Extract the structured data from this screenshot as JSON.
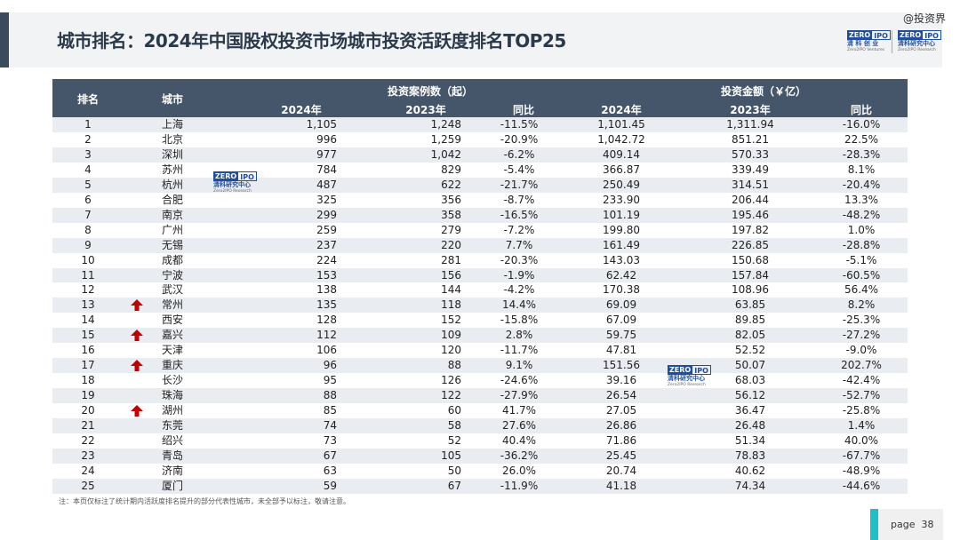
{
  "header": {
    "title": "城市排名：2024年中国股权投资市场城市投资活跃度排名TOP25",
    "watermark": "@投资界"
  },
  "logos": {
    "zero": "ZERO",
    "ipo": "IPO",
    "left_cn": "清 科 创 业",
    "left_en": "Zero2IPO Ventures",
    "right_cn": "清科研究中心",
    "right_en": "Zero2IPO Research"
  },
  "table": {
    "col_rank": "排名",
    "col_city": "城市",
    "group_cases": "投资案例数（起）",
    "group_amount": "投资金额（￥亿）",
    "sub_2024": "2024年",
    "sub_2023": "2023年",
    "sub_yoy": "同比",
    "rows": [
      {
        "rank": "1",
        "city": "上海",
        "n24": "1,105",
        "n23": "1,248",
        "nyoy": "-11.5%",
        "a24": "1,101.45",
        "a23": "1,311.94",
        "ayoy": "-16.0%",
        "up": false
      },
      {
        "rank": "2",
        "city": "北京",
        "n24": "996",
        "n23": "1,259",
        "nyoy": "-20.9%",
        "a24": "1,042.72",
        "a23": "851.21",
        "ayoy": "22.5%",
        "up": false
      },
      {
        "rank": "3",
        "city": "深圳",
        "n24": "977",
        "n23": "1,042",
        "nyoy": "-6.2%",
        "a24": "409.14",
        "a23": "570.33",
        "ayoy": "-28.3%",
        "up": false
      },
      {
        "rank": "4",
        "city": "苏州",
        "n24": "784",
        "n23": "829",
        "nyoy": "-5.4%",
        "a24": "366.87",
        "a23": "339.49",
        "ayoy": "8.1%",
        "up": false
      },
      {
        "rank": "5",
        "city": "杭州",
        "n24": "487",
        "n23": "622",
        "nyoy": "-21.7%",
        "a24": "250.49",
        "a23": "314.51",
        "ayoy": "-20.4%",
        "up": false
      },
      {
        "rank": "6",
        "city": "合肥",
        "n24": "325",
        "n23": "356",
        "nyoy": "-8.7%",
        "a24": "233.90",
        "a23": "206.44",
        "ayoy": "13.3%",
        "up": false
      },
      {
        "rank": "7",
        "city": "南京",
        "n24": "299",
        "n23": "358",
        "nyoy": "-16.5%",
        "a24": "101.19",
        "a23": "195.46",
        "ayoy": "-48.2%",
        "up": false
      },
      {
        "rank": "8",
        "city": "广州",
        "n24": "259",
        "n23": "279",
        "nyoy": "-7.2%",
        "a24": "199.80",
        "a23": "197.82",
        "ayoy": "1.0%",
        "up": false
      },
      {
        "rank": "9",
        "city": "无锡",
        "n24": "237",
        "n23": "220",
        "nyoy": "7.7%",
        "a24": "161.49",
        "a23": "226.85",
        "ayoy": "-28.8%",
        "up": false
      },
      {
        "rank": "10",
        "city": "成都",
        "n24": "224",
        "n23": "281",
        "nyoy": "-20.3%",
        "a24": "143.03",
        "a23": "150.68",
        "ayoy": "-5.1%",
        "up": false
      },
      {
        "rank": "11",
        "city": "宁波",
        "n24": "153",
        "n23": "156",
        "nyoy": "-1.9%",
        "a24": "62.42",
        "a23": "157.84",
        "ayoy": "-60.5%",
        "up": false
      },
      {
        "rank": "12",
        "city": "武汉",
        "n24": "138",
        "n23": "144",
        "nyoy": "-4.2%",
        "a24": "170.38",
        "a23": "108.96",
        "ayoy": "56.4%",
        "up": false
      },
      {
        "rank": "13",
        "city": "常州",
        "n24": "135",
        "n23": "118",
        "nyoy": "14.4%",
        "a24": "69.09",
        "a23": "63.85",
        "ayoy": "8.2%",
        "up": true
      },
      {
        "rank": "14",
        "city": "西安",
        "n24": "128",
        "n23": "152",
        "nyoy": "-15.8%",
        "a24": "67.09",
        "a23": "89.85",
        "ayoy": "-25.3%",
        "up": false
      },
      {
        "rank": "15",
        "city": "嘉兴",
        "n24": "112",
        "n23": "109",
        "nyoy": "2.8%",
        "a24": "59.75",
        "a23": "82.05",
        "ayoy": "-27.2%",
        "up": true
      },
      {
        "rank": "16",
        "city": "天津",
        "n24": "106",
        "n23": "120",
        "nyoy": "-11.7%",
        "a24": "47.81",
        "a23": "52.52",
        "ayoy": "-9.0%",
        "up": false
      },
      {
        "rank": "17",
        "city": "重庆",
        "n24": "96",
        "n23": "88",
        "nyoy": "9.1%",
        "a24": "151.56",
        "a23": "50.07",
        "ayoy": "202.7%",
        "up": true
      },
      {
        "rank": "18",
        "city": "长沙",
        "n24": "95",
        "n23": "126",
        "nyoy": "-24.6%",
        "a24": "39.16",
        "a23": "68.03",
        "ayoy": "-42.4%",
        "up": false
      },
      {
        "rank": "19",
        "city": "珠海",
        "n24": "88",
        "n23": "122",
        "nyoy": "-27.9%",
        "a24": "26.54",
        "a23": "56.12",
        "ayoy": "-52.7%",
        "up": false
      },
      {
        "rank": "20",
        "city": "湖州",
        "n24": "85",
        "n23": "60",
        "nyoy": "41.7%",
        "a24": "27.05",
        "a23": "36.47",
        "ayoy": "-25.8%",
        "up": true
      },
      {
        "rank": "21",
        "city": "东莞",
        "n24": "74",
        "n23": "58",
        "nyoy": "27.6%",
        "a24": "26.86",
        "a23": "26.48",
        "ayoy": "1.4%",
        "up": false
      },
      {
        "rank": "22",
        "city": "绍兴",
        "n24": "73",
        "n23": "52",
        "nyoy": "40.4%",
        "a24": "71.86",
        "a23": "51.34",
        "ayoy": "40.0%",
        "up": false
      },
      {
        "rank": "23",
        "city": "青岛",
        "n24": "67",
        "n23": "105",
        "nyoy": "-36.2%",
        "a24": "25.45",
        "a23": "78.83",
        "ayoy": "-67.7%",
        "up": false
      },
      {
        "rank": "24",
        "city": "济南",
        "n24": "63",
        "n23": "50",
        "nyoy": "26.0%",
        "a24": "20.74",
        "a23": "40.62",
        "ayoy": "-48.9%",
        "up": false
      },
      {
        "rank": "25",
        "city": "厦门",
        "n24": "59",
        "n23": "67",
        "nyoy": "-11.9%",
        "a24": "41.18",
        "a23": "74.34",
        "ayoy": "-44.6%",
        "up": false
      }
    ]
  },
  "footnote": "注：本页仅标注了统计期内活跃度排名提升的部分代表性城市，未全部予以标注，敬请注意。",
  "page": {
    "label": "page",
    "number": "38"
  },
  "colors": {
    "header_bg": "#46566a",
    "stripe": "#e9ecf1",
    "arrow": "#c00000",
    "page_accent": "#1fbfc7"
  }
}
